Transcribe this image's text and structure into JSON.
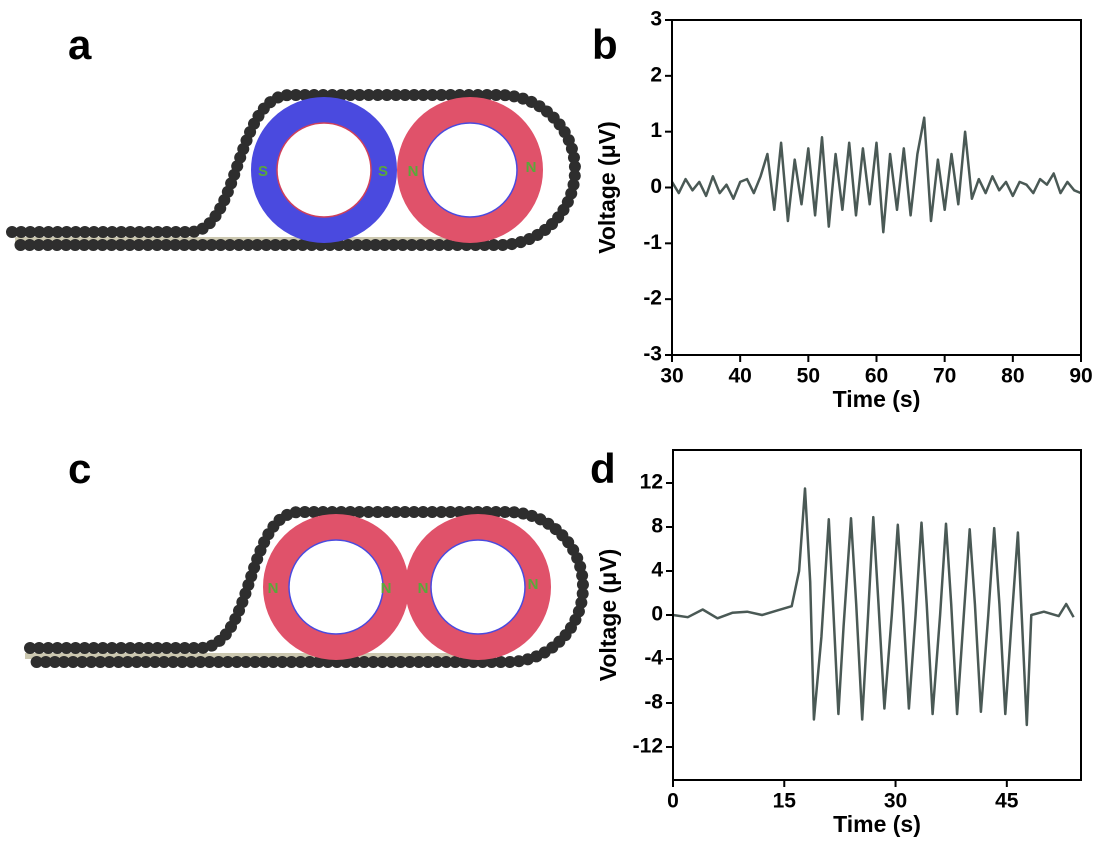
{
  "panel_labels": [
    "a",
    "b",
    "c",
    "d"
  ],
  "diagram_a": {
    "pole_labels": [
      "S",
      "S",
      "N",
      "N"
    ]
  },
  "diagram_c": {
    "pole_labels": [
      "N",
      "N",
      "N",
      "N"
    ]
  },
  "chart_data": [
    {
      "type": "line",
      "x_label": "Time (s)",
      "y_label": "Voltage (μV)",
      "color": "#4a5955",
      "xlim": [
        30,
        90
      ],
      "xticks": [
        30,
        40,
        50,
        60,
        70,
        80,
        90
      ],
      "ylim": [
        -3,
        3
      ],
      "yticks": [
        -3,
        -2,
        -1,
        0,
        1,
        2,
        3
      ],
      "x": [
        30,
        31,
        32,
        33,
        34,
        35,
        36,
        37,
        38,
        39,
        40,
        41,
        42,
        43,
        44,
        45,
        46,
        47,
        48,
        49,
        50,
        51,
        52,
        53,
        54,
        55,
        56,
        57,
        58,
        59,
        60,
        61,
        62,
        63,
        64,
        65,
        66,
        67,
        68,
        69,
        70,
        71,
        72,
        73,
        74,
        75,
        76,
        77,
        78,
        79,
        80,
        81,
        82,
        83,
        84,
        85,
        86,
        87,
        88,
        89,
        90
      ],
      "values": [
        0.1,
        -0.1,
        0.15,
        -0.05,
        0.1,
        -0.15,
        0.2,
        -0.1,
        0.05,
        -0.2,
        0.1,
        0.15,
        -0.1,
        0.2,
        0.6,
        -0.4,
        0.8,
        -0.6,
        0.5,
        -0.3,
        0.7,
        -0.5,
        0.9,
        -0.7,
        0.6,
        -0.4,
        0.8,
        -0.5,
        0.7,
        -0.3,
        0.8,
        -0.8,
        0.6,
        -0.4,
        0.7,
        -0.5,
        0.6,
        1.25,
        -0.6,
        0.5,
        -0.4,
        0.6,
        -0.3,
        1.0,
        -0.2,
        0.15,
        -0.1,
        0.2,
        -0.05,
        0.1,
        -0.15,
        0.1,
        0.05,
        -0.1,
        0.15,
        0.05,
        0.25,
        -0.1,
        0.1,
        -0.05,
        -0.1
      ]
    },
    {
      "type": "line",
      "x_label": "Time (s)",
      "y_label": "Voltage (μV)",
      "color": "#4a5955",
      "xlim": [
        0,
        55
      ],
      "xticks": [
        0,
        15,
        30,
        45
      ],
      "ylim": [
        -15,
        15
      ],
      "yticks": [
        -12,
        -8,
        -4,
        0,
        4,
        8,
        12
      ],
      "x": [
        0,
        2,
        4,
        6,
        8,
        10,
        12,
        14,
        16,
        17,
        17.8,
        18.5,
        19,
        20,
        21,
        21.5,
        22.3,
        23,
        24,
        24.7,
        25.5,
        26.3,
        27,
        27.7,
        28.5,
        29.5,
        30.3,
        31,
        31.8,
        32.7,
        33.5,
        34.2,
        35,
        36,
        36.8,
        37.5,
        38.3,
        39.2,
        40,
        40.7,
        41.5,
        42.5,
        43.3,
        44,
        44.8,
        45.7,
        46.5,
        47,
        47.7,
        48.3,
        50,
        52,
        53,
        54
      ],
      "values": [
        0,
        -0.2,
        0.5,
        -0.3,
        0.2,
        0.3,
        0,
        0.4,
        0.8,
        4,
        11.5,
        3,
        -9.5,
        -2,
        8.7,
        2,
        -9,
        -1,
        8.8,
        1,
        -9.5,
        0,
        8.9,
        1,
        -8.5,
        0,
        8.2,
        1,
        -8.5,
        0,
        8.4,
        1,
        -9,
        0,
        8.3,
        1,
        -9,
        0,
        7.8,
        1,
        -8.8,
        0,
        7.9,
        1,
        -9,
        0,
        7.5,
        0,
        -10,
        0,
        0.3,
        -0.1,
        1,
        -0.2
      ]
    }
  ]
}
